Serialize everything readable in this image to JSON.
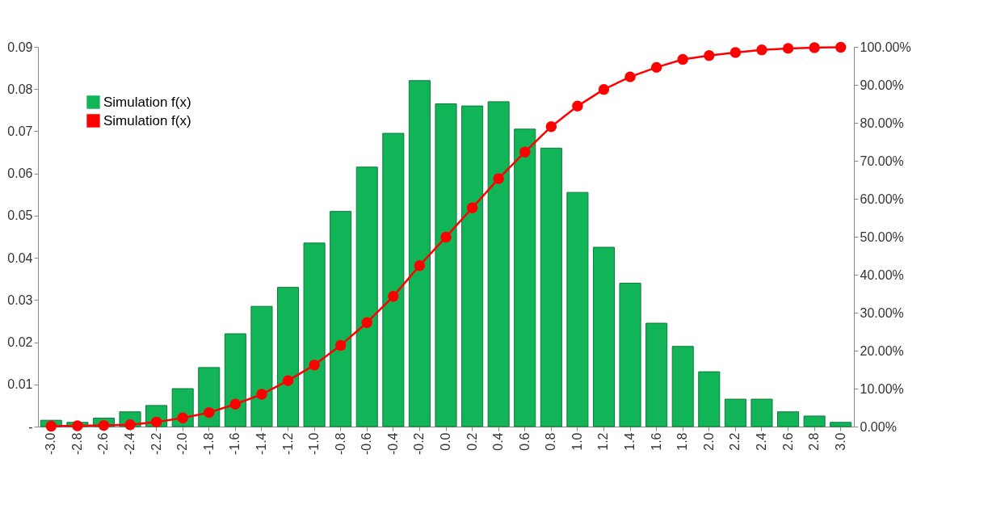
{
  "chart_data": {
    "type": "bar",
    "categories": [
      "-3.0",
      "-2.8",
      "-2.6",
      "-2.4",
      "-2.2",
      "-2.0",
      "-1.8",
      "-1.6",
      "-1.4",
      "-1.2",
      "-1.0",
      "-0.8",
      "-0.6",
      "-0.4",
      "-0.2",
      "0.0",
      "0.2",
      "0.4",
      "0.6",
      "0.8",
      "1.0",
      "1.2",
      "1.4",
      "1.6",
      "1.8",
      "2.0",
      "2.2",
      "2.4",
      "2.6",
      "2.8",
      "3.0"
    ],
    "series": [
      {
        "name": "Simulation f(x)",
        "color": "#11b557",
        "values": [
          0.0015,
          0.001,
          0.002,
          0.0035,
          0.005,
          0.009,
          0.014,
          0.022,
          0.0285,
          0.033,
          0.0435,
          0.051,
          0.0615,
          0.0695,
          0.082,
          0.0765,
          0.076,
          0.077,
          0.0705,
          0.066,
          0.0555,
          0.0425,
          0.034,
          0.0245,
          0.019,
          0.013,
          0.0065,
          0.0065,
          0.0035,
          0.0025,
          0.001
        ]
      },
      {
        "name": "Simulation f(x)",
        "type": "line",
        "axis": "y2",
        "color": "#ff0000",
        "marker": "circle",
        "line_style": "solid",
        "values": [
          0.1,
          0.2,
          0.3,
          0.5,
          1.2,
          2.3,
          3.7,
          5.9,
          8.5,
          12.1,
          16.2,
          21.4,
          27.4,
          34.3,
          42.4,
          49.9,
          57.6,
          65.3,
          72.3,
          79.0,
          84.4,
          88.8,
          92.1,
          94.6,
          96.7,
          97.7,
          98.5,
          99.2,
          99.6,
          99.8,
          99.9
        ]
      }
    ],
    "ylim": [
      0,
      0.09
    ],
    "yticks": [
      {
        "value": 0,
        "label": "-"
      },
      0.01,
      0.02,
      0.03,
      0.04,
      0.05,
      0.06,
      0.07,
      0.08,
      0.09
    ],
    "y2lim": [
      0,
      100
    ],
    "y2ticks": [
      {
        "value": 0,
        "label": "0.00%"
      },
      {
        "value": 10,
        "label": "10.00%"
      },
      {
        "value": 20,
        "label": "20.00%"
      },
      {
        "value": 30,
        "label": "30.00%"
      },
      {
        "value": 40,
        "label": "40.00%"
      },
      {
        "value": 50,
        "label": "50.00%"
      },
      {
        "value": 60,
        "label": "60.00%"
      },
      {
        "value": 70,
        "label": "70.00%"
      },
      {
        "value": 80,
        "label": "80.00%"
      },
      {
        "value": 90,
        "label": "90.00%"
      },
      {
        "value": 100,
        "label": "100.00%"
      }
    ],
    "grid": false,
    "legend": "top left"
  }
}
